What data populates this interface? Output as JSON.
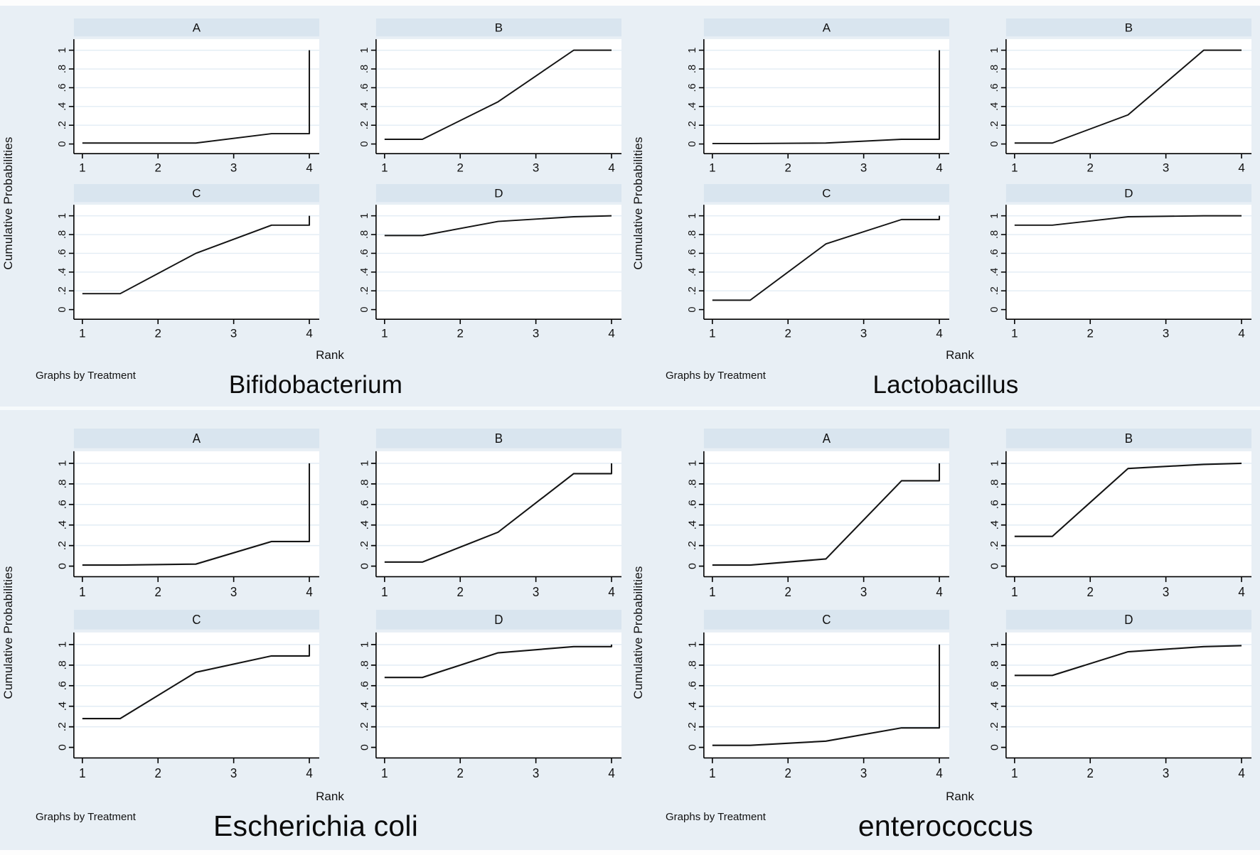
{
  "page": {
    "background_color": "#e8eff5",
    "description": "Four Stata-style figures of cumulative probability curves by treatment"
  },
  "style": {
    "background": "#e8eff5",
    "panel_header_fill": "#d9e5ef",
    "plot_bg": "#ffffff",
    "grid_color": "#e2ecf4",
    "axis_color": "#000000",
    "line_color": "#141414",
    "divider_color": "#f6fafc"
  },
  "chart_data": [
    {
      "type": "line",
      "title": "Bifidobacterium",
      "ylabel": "Cumulative Probabilities",
      "xlabel": "Rank",
      "note": "Graphs by Treatment",
      "xlim": [
        1,
        4
      ],
      "ylim": [
        0,
        1
      ],
      "grid": true,
      "legend": "none",
      "x_ticks": [
        "1",
        "2",
        "3",
        "4"
      ],
      "y_ticks": [
        {
          "v": 0,
          "label": "0"
        },
        {
          "v": 0.2,
          "label": ".2"
        },
        {
          "v": 0.4,
          "label": ".4"
        },
        {
          "v": 0.6,
          "label": ".6"
        },
        {
          "v": 0.8,
          "label": ".8"
        },
        {
          "v": 1,
          "label": "1"
        }
      ],
      "panels": [
        {
          "label": "A",
          "x": [
            1,
            1.5,
            2.5,
            3.5,
            4,
            4
          ],
          "y": [
            0.01,
            0.01,
            0.01,
            0.11,
            0.11,
            1.0
          ]
        },
        {
          "label": "B",
          "x": [
            1,
            1.5,
            2.5,
            3.5,
            4
          ],
          "y": [
            0.05,
            0.05,
            0.45,
            1.0,
            1.0
          ]
        },
        {
          "label": "C",
          "x": [
            1,
            1.5,
            2.5,
            3.5,
            4,
            4
          ],
          "y": [
            0.17,
            0.17,
            0.6,
            0.9,
            0.9,
            1.0
          ]
        },
        {
          "label": "D",
          "x": [
            1,
            1.5,
            2.5,
            3.5,
            4
          ],
          "y": [
            0.79,
            0.79,
            0.94,
            0.99,
            1.0
          ]
        }
      ]
    },
    {
      "type": "line",
      "title": "Lactobacillus",
      "ylabel": "Cumulative Probabilities",
      "xlabel": "Rank",
      "note": "Graphs by Treatment",
      "xlim": [
        1,
        4
      ],
      "ylim": [
        0,
        1
      ],
      "grid": true,
      "legend": "none",
      "x_ticks": [
        "1",
        "2",
        "3",
        "4"
      ],
      "y_ticks": [
        {
          "v": 0,
          "label": "0"
        },
        {
          "v": 0.2,
          "label": ".2"
        },
        {
          "v": 0.4,
          "label": ".4"
        },
        {
          "v": 0.6,
          "label": ".6"
        },
        {
          "v": 0.8,
          "label": ".8"
        },
        {
          "v": 1,
          "label": "1"
        }
      ],
      "panels": [
        {
          "label": "A",
          "x": [
            1,
            1.5,
            2.5,
            3.5,
            4,
            4
          ],
          "y": [
            0.005,
            0.005,
            0.01,
            0.05,
            0.05,
            1.0
          ]
        },
        {
          "label": "B",
          "x": [
            1,
            1.5,
            2.5,
            3.5,
            4
          ],
          "y": [
            0.01,
            0.01,
            0.31,
            1.0,
            1.0
          ]
        },
        {
          "label": "C",
          "x": [
            1,
            1.5,
            2.5,
            3.5,
            4,
            4
          ],
          "y": [
            0.1,
            0.1,
            0.7,
            0.96,
            0.96,
            1.0
          ]
        },
        {
          "label": "D",
          "x": [
            1,
            1.5,
            2.5,
            3.5,
            4
          ],
          "y": [
            0.9,
            0.9,
            0.99,
            1.0,
            1.0
          ]
        }
      ]
    },
    {
      "type": "line",
      "title": "Escherichia coli",
      "ylabel": "Cumulative Probabilities",
      "xlabel": "Rank",
      "note": "Graphs by Treatment",
      "xlim": [
        1,
        4
      ],
      "ylim": [
        0,
        1
      ],
      "grid": true,
      "legend": "none",
      "x_ticks": [
        "1",
        "2",
        "3",
        "4"
      ],
      "y_ticks": [
        {
          "v": 0,
          "label": "0"
        },
        {
          "v": 0.2,
          "label": ".2"
        },
        {
          "v": 0.4,
          "label": ".4"
        },
        {
          "v": 0.6,
          "label": ".6"
        },
        {
          "v": 0.8,
          "label": ".8"
        },
        {
          "v": 1,
          "label": "1"
        }
      ],
      "panels": [
        {
          "label": "A",
          "x": [
            1,
            1.5,
            2.5,
            3.5,
            4,
            4
          ],
          "y": [
            0.01,
            0.01,
            0.02,
            0.24,
            0.24,
            1.0
          ]
        },
        {
          "label": "B",
          "x": [
            1,
            1.5,
            2.5,
            3.5,
            4,
            4
          ],
          "y": [
            0.04,
            0.04,
            0.33,
            0.9,
            0.9,
            1.0
          ]
        },
        {
          "label": "C",
          "x": [
            1,
            1.5,
            2.5,
            3.5,
            4,
            4
          ],
          "y": [
            0.28,
            0.28,
            0.73,
            0.89,
            0.89,
            1.0
          ]
        },
        {
          "label": "D",
          "x": [
            1,
            1.5,
            2.5,
            3.5,
            4,
            4
          ],
          "y": [
            0.68,
            0.68,
            0.92,
            0.98,
            0.98,
            1.0
          ]
        }
      ]
    },
    {
      "type": "line",
      "title": "enterococcus",
      "ylabel": "Cumulative Probabilities",
      "xlabel": "Rank",
      "note": "Graphs by Treatment",
      "xlim": [
        1,
        4
      ],
      "ylim": [
        0,
        1
      ],
      "grid": true,
      "legend": "none",
      "x_ticks": [
        "1",
        "2",
        "3",
        "4"
      ],
      "y_ticks": [
        {
          "v": 0,
          "label": "0"
        },
        {
          "v": 0.2,
          "label": ".2"
        },
        {
          "v": 0.4,
          "label": ".4"
        },
        {
          "v": 0.6,
          "label": ".6"
        },
        {
          "v": 0.8,
          "label": ".8"
        },
        {
          "v": 1,
          "label": "1"
        }
      ],
      "panels": [
        {
          "label": "A",
          "x": [
            1,
            1.5,
            2.5,
            3.5,
            4,
            4
          ],
          "y": [
            0.01,
            0.01,
            0.07,
            0.83,
            0.83,
            1.0
          ]
        },
        {
          "label": "B",
          "x": [
            1,
            1.5,
            2.5,
            3.5,
            4
          ],
          "y": [
            0.29,
            0.29,
            0.95,
            0.99,
            1.0
          ]
        },
        {
          "label": "C",
          "x": [
            1,
            1.5,
            2.5,
            3.5,
            4,
            4
          ],
          "y": [
            0.02,
            0.02,
            0.06,
            0.19,
            0.19,
            1.0
          ]
        },
        {
          "label": "D",
          "x": [
            1,
            1.5,
            2.5,
            3.5,
            4
          ],
          "y": [
            0.7,
            0.7,
            0.93,
            0.98,
            0.99
          ]
        }
      ]
    }
  ]
}
